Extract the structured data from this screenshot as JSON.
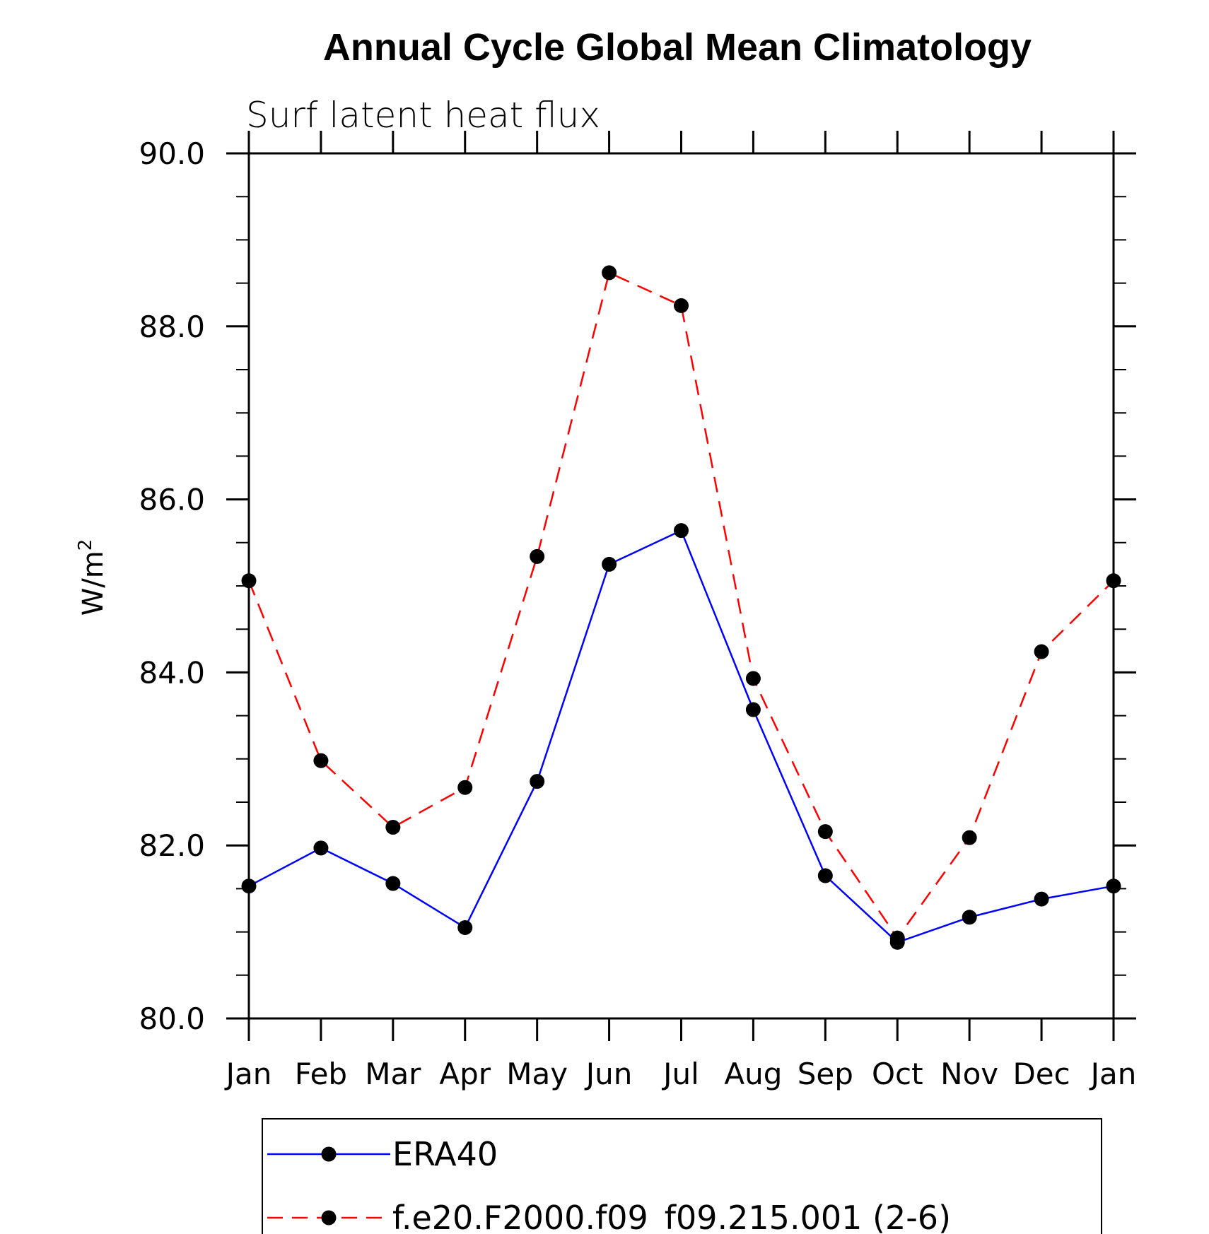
{
  "chart_data": {
    "type": "line",
    "title": "Annual Cycle Global Mean Climatology",
    "subtitle": "Surf latent heat flux",
    "ylabel_base": "W/m",
    "ylabel_sup": "2",
    "xlabel": "",
    "categories": [
      "Jan",
      "Feb",
      "Mar",
      "Apr",
      "May",
      "Jun",
      "Jul",
      "Aug",
      "Sep",
      "Oct",
      "Nov",
      "Dec",
      "Jan"
    ],
    "ylim": [
      80.0,
      90.0
    ],
    "yticks": [
      "80.0",
      "82.0",
      "84.0",
      "86.0",
      "88.0",
      "90.0"
    ],
    "grid": false,
    "legend_position": "bottom",
    "series": [
      {
        "name": "ERA40",
        "color": "#0000ff",
        "dash": "solid",
        "marker": "filled-circle",
        "values": [
          81.53,
          81.97,
          81.56,
          81.05,
          82.74,
          85.25,
          85.64,
          83.57,
          81.65,
          80.88,
          81.17,
          81.38,
          81.53
        ]
      },
      {
        "name": "f.e20.F2000.f09_f09.215.001 (2-6)",
        "color": "#ff0000",
        "dash": "dashed",
        "marker": "filled-circle",
        "values": [
          85.06,
          82.98,
          82.21,
          82.67,
          85.34,
          88.62,
          88.24,
          83.93,
          82.16,
          80.93,
          82.09,
          84.24,
          85.06
        ]
      }
    ]
  }
}
